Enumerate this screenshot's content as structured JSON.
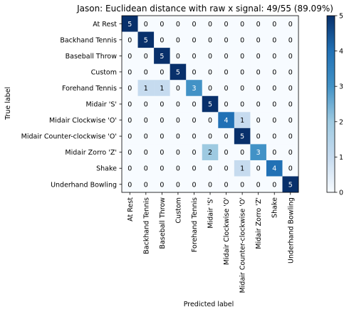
{
  "chart_data": {
    "type": "heatmap",
    "title": "Jason: Euclidean distance with raw x signal: 49/55 (89.09%)",
    "xlabel": "Predicted label",
    "ylabel": "True label",
    "labels": [
      "At Rest",
      "Backhand Tennis",
      "Baseball Throw",
      "Custom",
      "Forehand Tennis",
      "Midair 'S'",
      "Midair Clockwise 'O'",
      "Midair Counter-clockwise 'O'",
      "Midair Zorro 'Z'",
      "Shake",
      "Underhand Bowling"
    ],
    "matrix": [
      [
        5,
        0,
        0,
        0,
        0,
        0,
        0,
        0,
        0,
        0,
        0
      ],
      [
        0,
        5,
        0,
        0,
        0,
        0,
        0,
        0,
        0,
        0,
        0
      ],
      [
        0,
        0,
        5,
        0,
        0,
        0,
        0,
        0,
        0,
        0,
        0
      ],
      [
        0,
        0,
        0,
        5,
        0,
        0,
        0,
        0,
        0,
        0,
        0
      ],
      [
        0,
        1,
        1,
        0,
        3,
        0,
        0,
        0,
        0,
        0,
        0
      ],
      [
        0,
        0,
        0,
        0,
        0,
        5,
        0,
        0,
        0,
        0,
        0
      ],
      [
        0,
        0,
        0,
        0,
        0,
        0,
        4,
        1,
        0,
        0,
        0
      ],
      [
        0,
        0,
        0,
        0,
        0,
        0,
        0,
        5,
        0,
        0,
        0
      ],
      [
        0,
        0,
        0,
        0,
        0,
        2,
        0,
        0,
        3,
        0,
        0
      ],
      [
        0,
        0,
        0,
        0,
        0,
        0,
        0,
        1,
        0,
        4,
        0
      ],
      [
        0,
        0,
        0,
        0,
        0,
        0,
        0,
        0,
        0,
        0,
        5
      ]
    ],
    "colormap": "Blues",
    "vmin": 0,
    "vmax": 5,
    "colorbar_ticks": [
      "0",
      "1",
      "2",
      "3",
      "4",
      "5"
    ],
    "colors": {
      "low": "#f7fbff",
      "c1": "#c6dbef",
      "c2": "#9ecae1",
      "c3": "#4292c6",
      "c4": "#2171b5",
      "high": "#08306b"
    }
  }
}
